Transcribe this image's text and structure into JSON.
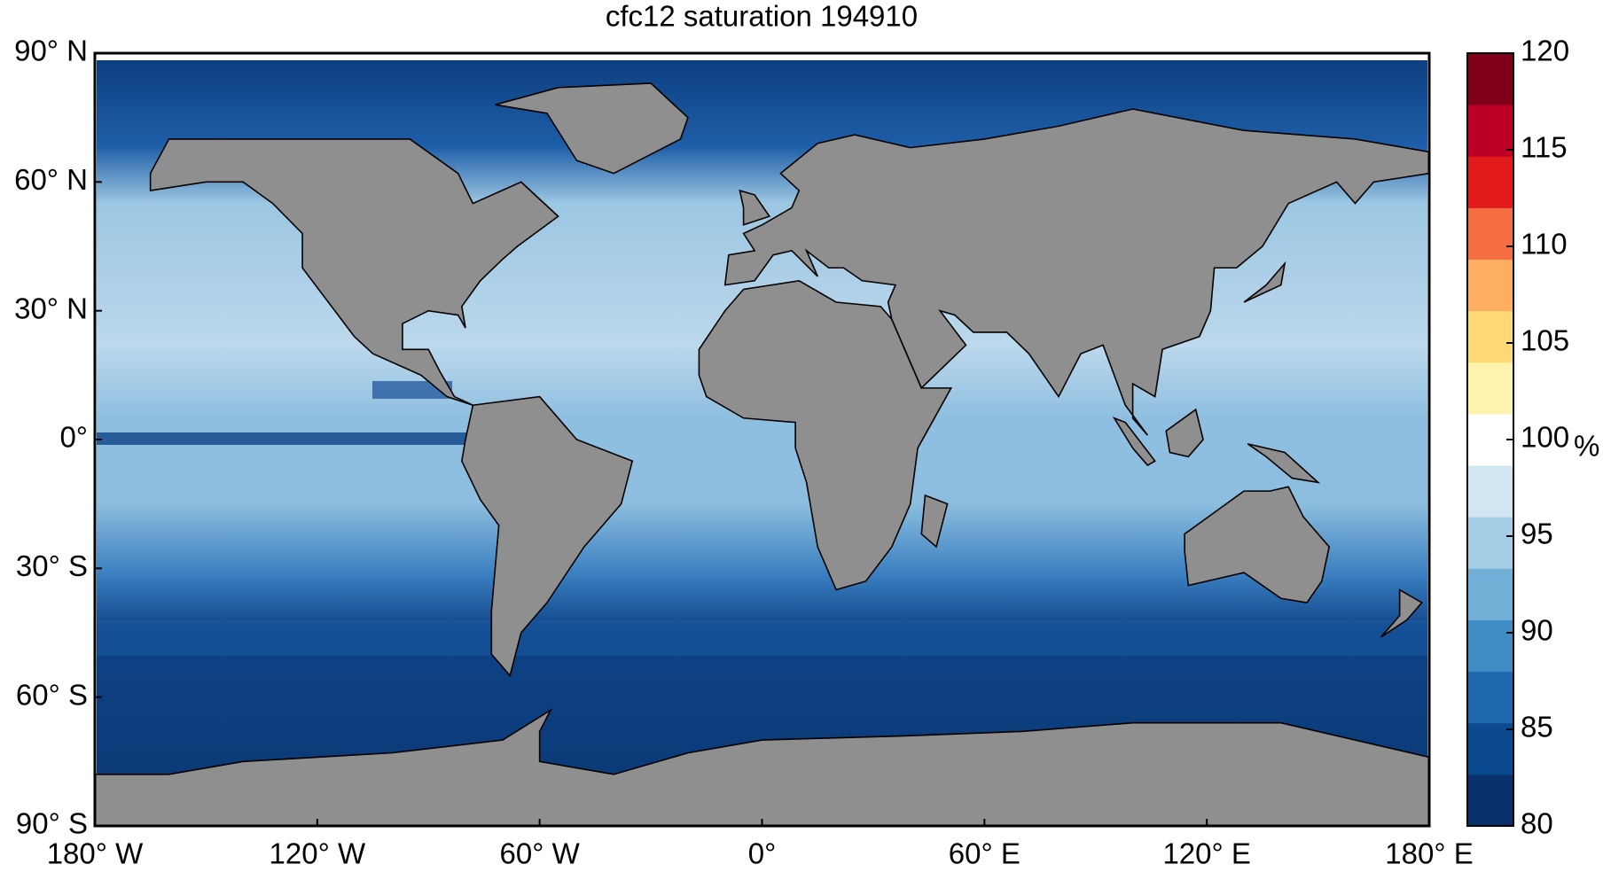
{
  "chart_data": {
    "type": "map",
    "title": "cfc12 saturation 194910",
    "xlim": [
      -180,
      180
    ],
    "ylim": [
      -90,
      90
    ],
    "xticks": [
      {
        "value": -180,
        "label": "180° W"
      },
      {
        "value": -120,
        "label": "120° W"
      },
      {
        "value": -60,
        "label": "60° W"
      },
      {
        "value": 0,
        "label": "0°"
      },
      {
        "value": 60,
        "label": "60° E"
      },
      {
        "value": 120,
        "label": "120° E"
      },
      {
        "value": 180,
        "label": "180° E"
      }
    ],
    "yticks": [
      {
        "value": 90,
        "label": "90° N"
      },
      {
        "value": 60,
        "label": "60° N"
      },
      {
        "value": 30,
        "label": "30° N"
      },
      {
        "value": 0,
        "label": "0°"
      },
      {
        "value": -30,
        "label": "30° S"
      },
      {
        "value": -60,
        "label": "60° S"
      },
      {
        "value": -90,
        "label": "90° S"
      }
    ],
    "colorbar": {
      "lim": [
        80,
        120
      ],
      "ticks": [
        80,
        85,
        90,
        95,
        100,
        105,
        110,
        115,
        120
      ],
      "unit": "%",
      "colors": [
        "#08306b",
        "#0b4a8f",
        "#1f68ad",
        "#3f8bc4",
        "#72aed6",
        "#a6cde6",
        "#d2e5f2",
        "#ffffff",
        "#fff3b0",
        "#fed976",
        "#fdae61",
        "#f46d43",
        "#e31a1c",
        "#bd0026",
        "#7f0018"
      ]
    }
  }
}
